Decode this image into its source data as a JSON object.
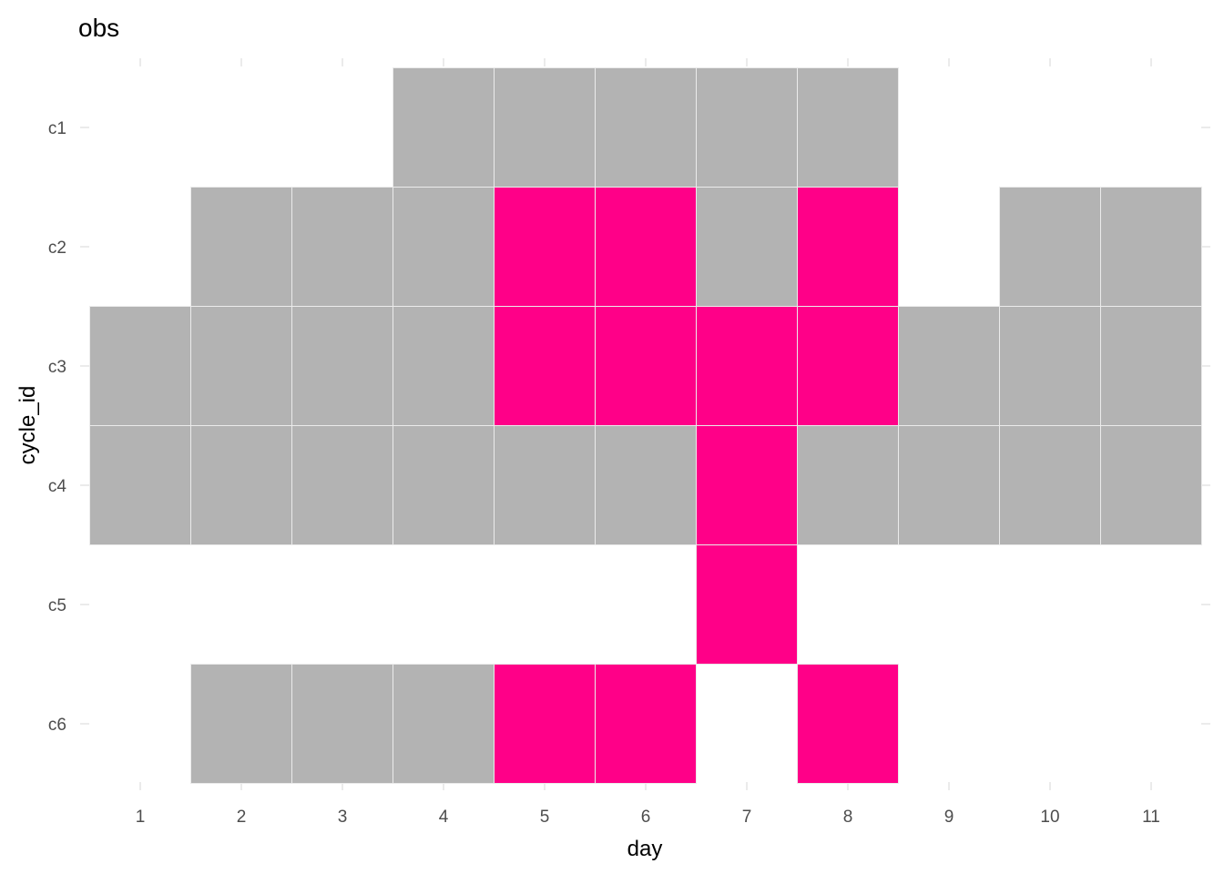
{
  "chart_data": {
    "type": "heatmap",
    "title": "obs",
    "xlabel": "day",
    "ylabel": "cycle_id",
    "x": [
      1,
      2,
      3,
      4,
      5,
      6,
      7,
      8,
      9,
      10,
      11
    ],
    "y": [
      "c1",
      "c2",
      "c3",
      "c4",
      "c5",
      "c6"
    ],
    "grid": false,
    "legend": "none",
    "colors": {
      "0": "#b3b3b3",
      "1": "#ff0088"
    },
    "cells": [
      [
        "c1",
        4,
        0
      ],
      [
        "c1",
        5,
        0
      ],
      [
        "c1",
        6,
        0
      ],
      [
        "c1",
        7,
        0
      ],
      [
        "c1",
        8,
        0
      ],
      [
        "c2",
        2,
        0
      ],
      [
        "c2",
        3,
        0
      ],
      [
        "c2",
        4,
        0
      ],
      [
        "c2",
        5,
        1
      ],
      [
        "c2",
        6,
        1
      ],
      [
        "c2",
        7,
        0
      ],
      [
        "c2",
        8,
        1
      ],
      [
        "c2",
        10,
        0
      ],
      [
        "c2",
        11,
        0
      ],
      [
        "c3",
        1,
        0
      ],
      [
        "c3",
        2,
        0
      ],
      [
        "c3",
        3,
        0
      ],
      [
        "c3",
        4,
        0
      ],
      [
        "c3",
        5,
        1
      ],
      [
        "c3",
        6,
        1
      ],
      [
        "c3",
        7,
        1
      ],
      [
        "c3",
        8,
        1
      ],
      [
        "c3",
        9,
        0
      ],
      [
        "c3",
        10,
        0
      ],
      [
        "c3",
        11,
        0
      ],
      [
        "c4",
        1,
        0
      ],
      [
        "c4",
        2,
        0
      ],
      [
        "c4",
        3,
        0
      ],
      [
        "c4",
        4,
        0
      ],
      [
        "c4",
        5,
        0
      ],
      [
        "c4",
        6,
        0
      ],
      [
        "c4",
        7,
        1
      ],
      [
        "c4",
        8,
        0
      ],
      [
        "c4",
        9,
        0
      ],
      [
        "c4",
        10,
        0
      ],
      [
        "c4",
        11,
        0
      ],
      [
        "c5",
        7,
        1
      ],
      [
        "c6",
        2,
        0
      ],
      [
        "c6",
        3,
        0
      ],
      [
        "c6",
        4,
        0
      ],
      [
        "c6",
        5,
        1
      ],
      [
        "c6",
        6,
        1
      ],
      [
        "c6",
        8,
        1
      ]
    ]
  }
}
